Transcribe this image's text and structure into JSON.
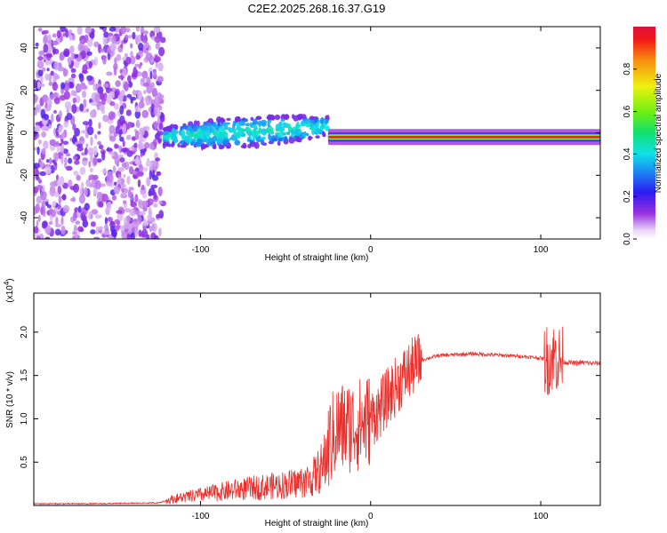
{
  "title": "C2E2.2025.268.16.37.G19",
  "chart_data": [
    {
      "type": "heatmap",
      "name": "spectrogram",
      "xlabel": "Height of straight line (km)",
      "ylabel": "Frequency (Hz)",
      "xlim": [
        -198,
        135
      ],
      "ylim": [
        -50,
        50
      ],
      "xticks": [
        -100,
        0,
        100
      ],
      "yticks": [
        -40,
        -20,
        0,
        20,
        40
      ],
      "colorbar": {
        "label": "Normalized spectral amplitude",
        "range": [
          0,
          1
        ],
        "ticks": [
          0.0,
          0.2,
          0.4,
          0.6,
          0.8
        ]
      },
      "regions": [
        {
          "name": "noise",
          "x": [
            -198,
            -122
          ],
          "y": [
            -50,
            50
          ],
          "level": 0.15
        },
        {
          "name": "scattered-signal",
          "x": [
            -122,
            -25
          ],
          "y_center_start": -2,
          "y_center_end": 3,
          "level": 0.3
        },
        {
          "name": "tracked-signal",
          "x": [
            -25,
            135
          ],
          "y_center": -2,
          "level": 0.9
        }
      ]
    },
    {
      "type": "line",
      "name": "snr",
      "xlabel": "Height of straight line (km)",
      "ylabel": "SNR (10 * v/v)",
      "y_multiplier": "(x10",
      "y_multiplier_exp": "4",
      "y_multiplier_close": ")",
      "xlim": [
        -198,
        135
      ],
      "ylim": [
        0,
        2.45
      ],
      "xticks": [
        -100,
        0,
        100
      ],
      "yticks": [
        0.5,
        1.0,
        1.5,
        2.0
      ],
      "ytick_labels": [
        "0.5",
        "1.0",
        "1.5",
        "2.0"
      ],
      "series": [
        {
          "name": "SNR",
          "color": "#e8302c",
          "x": [
            -198,
            -160,
            -125,
            -115,
            -100,
            -80,
            -60,
            -45,
            -35,
            -28,
            -24,
            -20,
            -15,
            -10,
            -5,
            0,
            5,
            10,
            15,
            20,
            25,
            30,
            40,
            50,
            60,
            70,
            80,
            90,
            100,
            104,
            108,
            110,
            112,
            116,
            120,
            125,
            130,
            135
          ],
          "y": [
            0.02,
            0.02,
            0.03,
            0.08,
            0.12,
            0.18,
            0.22,
            0.25,
            0.3,
            0.45,
            0.72,
            0.88,
            0.9,
            0.92,
            0.95,
            1.0,
            1.1,
            1.25,
            1.38,
            1.5,
            1.6,
            1.68,
            1.73,
            1.74,
            1.75,
            1.74,
            1.73,
            1.72,
            1.7,
            1.68,
            1.72,
            1.7,
            1.66,
            1.65,
            1.64,
            1.65,
            1.64,
            1.64
          ]
        }
      ]
    }
  ]
}
